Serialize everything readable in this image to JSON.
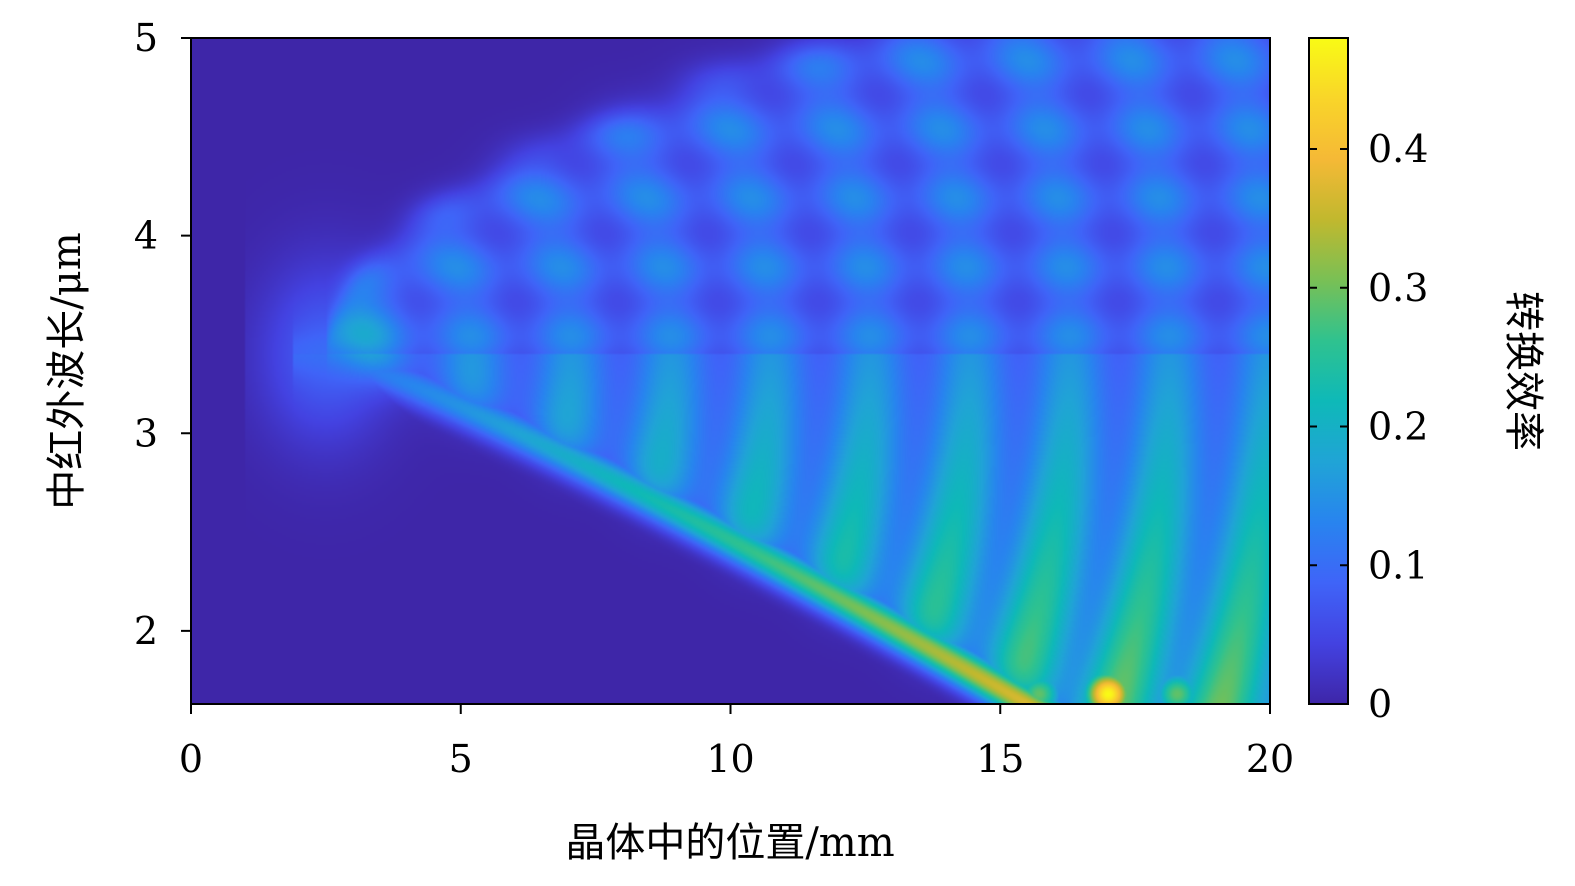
{
  "chart_data": {
    "type": "heatmap",
    "title": "",
    "xlabel": "晶体中的位置/mm",
    "ylabel": "中红外波长/μm",
    "colorbar_label": "转换效率",
    "xlim": [
      0,
      20
    ],
    "ylim": [
      1.63,
      5
    ],
    "clim": [
      0,
      0.48
    ],
    "x_ticks": [
      0,
      5,
      10,
      15,
      20
    ],
    "x_tick_labels": [
      "0",
      "5",
      "10",
      "15",
      "20"
    ],
    "y_ticks": [
      2,
      3,
      4,
      5
    ],
    "y_tick_labels": [
      "2",
      "3",
      "4",
      "5"
    ],
    "colorbar_ticks": [
      0,
      0.1,
      0.2,
      0.3,
      0.4
    ],
    "colorbar_tick_labels": [
      "0",
      "0.1",
      "0.2",
      "0.3",
      "0.4"
    ],
    "colormap": [
      "#3e26a8",
      "#4342e1",
      "#3f64f8",
      "#2884ef",
      "#20a4d6",
      "#0eb9b8",
      "#2fc28f",
      "#79c055",
      "#c1b82e",
      "#f5b936",
      "#f9d529",
      "#f9fb15"
    ],
    "grid": false,
    "description_features": {
      "pattern": "chevron-shaped high-efficiency region; vertex at x≈2.5 mm, y≈3.4 μm; upper edge rises to y=5 μm near x≈12 mm; lower edge descends to y≈1.63 μm near x≈15.5 mm; interference fringes inside",
      "peak_value": 0.48,
      "peak_location": [
        17,
        1.68
      ],
      "plateau_value_lower_band": 0.25,
      "plateau_value_upper_band": 0.12
    }
  }
}
